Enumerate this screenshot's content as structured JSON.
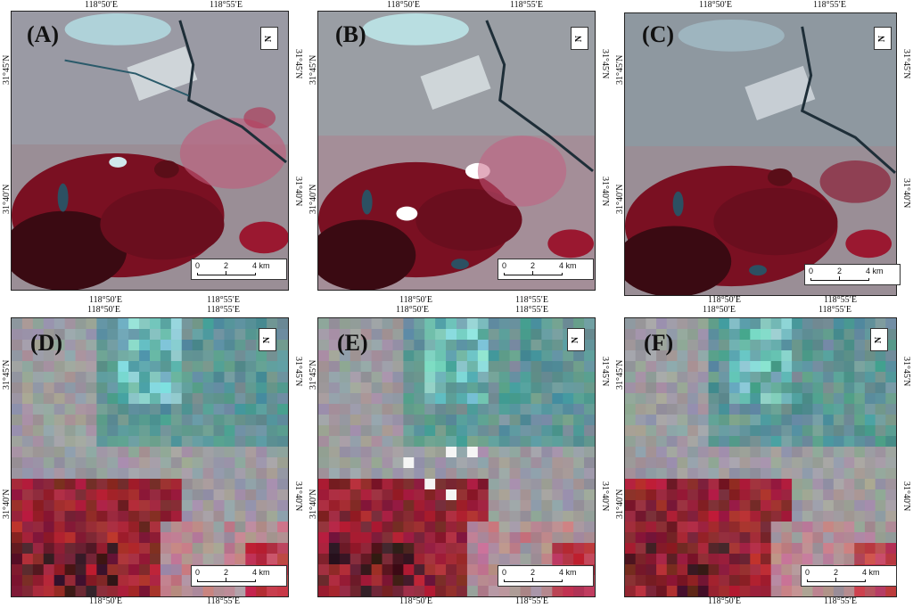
{
  "panels": [
    {
      "id": "A",
      "label": "(A)"
    },
    {
      "id": "B",
      "label": "(B)"
    },
    {
      "id": "C",
      "label": "(C)"
    },
    {
      "id": "D",
      "label": "(D)"
    },
    {
      "id": "E",
      "label": "(E)"
    },
    {
      "id": "F",
      "label": "(F)"
    }
  ],
  "ticks": {
    "lon1": "118°50′E",
    "lon2": "118°55′E",
    "lat1": "31°45′N",
    "lat2": "31°40′N"
  },
  "scalebar": {
    "zero": "0",
    "two": "2",
    "four": "4 km"
  },
  "north_arrow_text": "N",
  "colors": {
    "vegetation": "#b0203a",
    "urban": "#8aa0a8",
    "water": "#2f5a6a",
    "bright": "#8fe8e4"
  }
}
